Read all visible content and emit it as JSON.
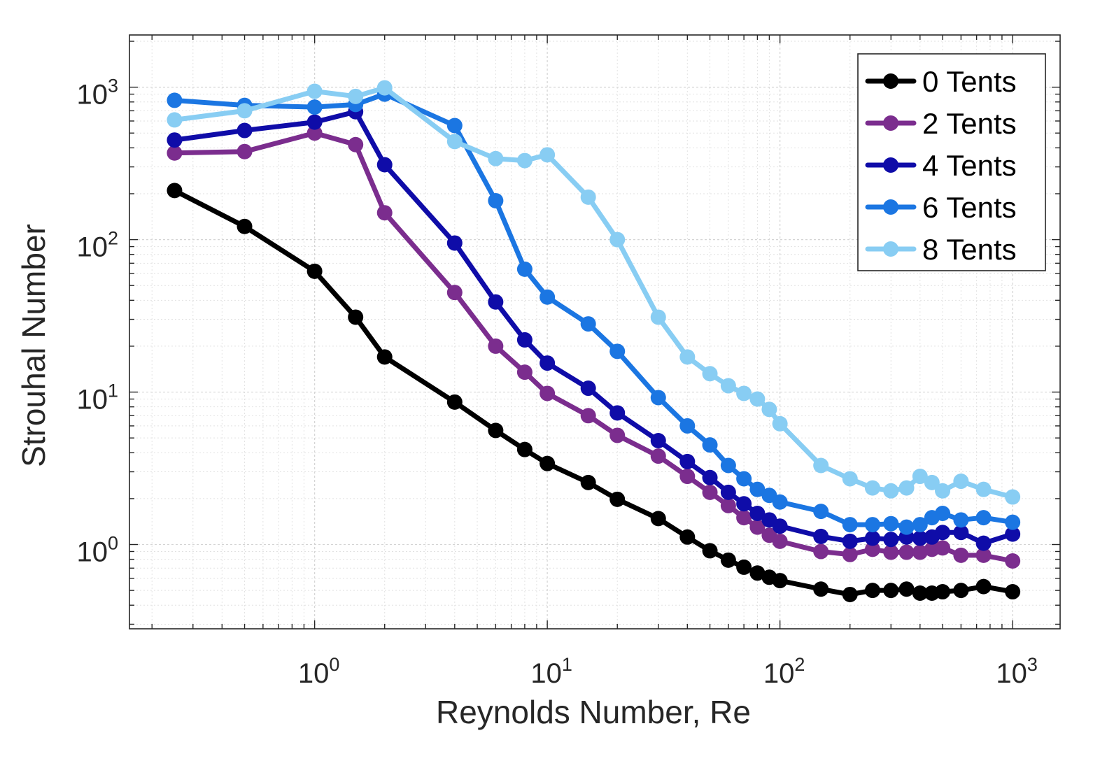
{
  "chart_data": {
    "type": "line",
    "title": "",
    "xlabel": "Reynolds Number, Re",
    "ylabel": "Strouhal Number",
    "xscale": "log",
    "yscale": "log",
    "xlim": [
      0.16,
      1600
    ],
    "ylim": [
      0.28,
      2200
    ],
    "grid": true,
    "legend_position": "top-right",
    "xticks": [
      {
        "base": "10",
        "exp": "0"
      },
      {
        "base": "10",
        "exp": "1"
      },
      {
        "base": "10",
        "exp": "2"
      },
      {
        "base": "10",
        "exp": "3"
      }
    ],
    "yticks": [
      {
        "base": "10",
        "exp": "0"
      },
      {
        "base": "10",
        "exp": "1"
      },
      {
        "base": "10",
        "exp": "2"
      },
      {
        "base": "10",
        "exp": "3"
      }
    ],
    "series": [
      {
        "name": "0 Tents",
        "color": "#000000",
        "x": [
          0.25,
          0.5,
          1,
          1.5,
          2,
          4,
          6,
          8,
          10,
          15,
          20,
          30,
          40,
          50,
          60,
          70,
          80,
          90,
          100,
          150,
          200,
          250,
          300,
          350,
          400,
          450,
          500,
          600,
          750,
          1000
        ],
        "y": [
          210,
          122,
          62,
          31,
          17,
          8.6,
          5.6,
          4.2,
          3.4,
          2.55,
          1.98,
          1.48,
          1.12,
          0.91,
          0.79,
          0.71,
          0.65,
          0.61,
          0.58,
          0.51,
          0.47,
          0.5,
          0.5,
          0.51,
          0.48,
          0.48,
          0.49,
          0.5,
          0.53,
          0.49
        ]
      },
      {
        "name": "2 Tents",
        "color": "#7b2d8e",
        "x": [
          0.25,
          0.5,
          1,
          1.5,
          2,
          4,
          6,
          8,
          10,
          15,
          20,
          30,
          40,
          50,
          60,
          70,
          80,
          90,
          100,
          150,
          200,
          250,
          300,
          350,
          400,
          450,
          500,
          600,
          750,
          1000
        ],
        "y": [
          370,
          378,
          500,
          420,
          150,
          45,
          20,
          13.5,
          9.8,
          7.0,
          5.2,
          3.8,
          2.8,
          2.2,
          1.8,
          1.5,
          1.3,
          1.15,
          1.05,
          0.9,
          0.86,
          0.93,
          0.89,
          0.89,
          0.89,
          0.93,
          0.95,
          0.85,
          0.85,
          0.78
        ]
      },
      {
        "name": "4 Tents",
        "color": "#0f0ca8",
        "x": [
          0.25,
          0.5,
          1,
          1.5,
          2,
          4,
          6,
          8,
          10,
          15,
          20,
          30,
          40,
          50,
          60,
          70,
          80,
          90,
          100,
          150,
          200,
          250,
          300,
          350,
          400,
          450,
          500,
          600,
          750,
          1000
        ],
        "y": [
          450,
          520,
          590,
          690,
          310,
          95,
          39,
          22,
          15.5,
          10.6,
          7.3,
          4.8,
          3.5,
          2.75,
          2.2,
          1.85,
          1.6,
          1.45,
          1.32,
          1.13,
          1.05,
          1.1,
          1.08,
          1.12,
          1.1,
          1.12,
          1.2,
          1.2,
          1.02,
          1.17
        ]
      },
      {
        "name": "6 Tents",
        "color": "#1b76e2",
        "x": [
          0.25,
          0.5,
          1,
          1.5,
          2,
          4,
          6,
          8,
          10,
          15,
          20,
          30,
          40,
          50,
          60,
          70,
          80,
          90,
          100,
          150,
          200,
          250,
          300,
          350,
          400,
          450,
          500,
          600,
          750,
          1000
        ],
        "y": [
          820,
          760,
          740,
          770,
          900,
          560,
          180,
          64,
          42,
          28,
          18.5,
          9.2,
          6.0,
          4.5,
          3.3,
          2.7,
          2.3,
          2.1,
          1.9,
          1.65,
          1.35,
          1.35,
          1.37,
          1.3,
          1.35,
          1.5,
          1.6,
          1.45,
          1.5,
          1.4
        ]
      },
      {
        "name": "8 Tents",
        "color": "#88cdf3",
        "x": [
          0.25,
          0.5,
          1,
          1.5,
          2,
          4,
          6,
          8,
          10,
          15,
          20,
          30,
          40,
          50,
          60,
          70,
          80,
          90,
          100,
          150,
          200,
          250,
          300,
          350,
          400,
          450,
          500,
          600,
          750,
          1000
        ],
        "y": [
          610,
          700,
          940,
          870,
          990,
          440,
          340,
          330,
          360,
          190,
          100,
          31,
          17,
          13.2,
          11,
          9.8,
          9.0,
          7.7,
          6.2,
          3.3,
          2.7,
          2.35,
          2.25,
          2.35,
          2.8,
          2.55,
          2.25,
          2.6,
          2.3,
          2.05
        ]
      }
    ]
  }
}
